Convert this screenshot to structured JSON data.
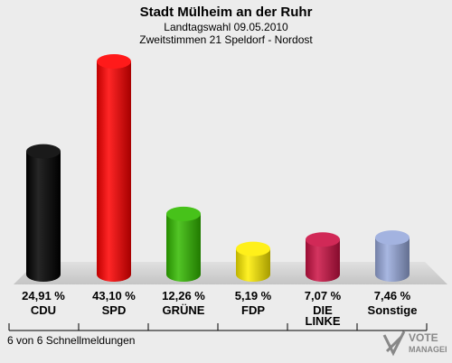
{
  "header": {
    "title": "Stadt Mülheim an der Ruhr",
    "subtitle1": "Landtagswahl 09.05.2010",
    "subtitle2": "Zweitstimmen 21 Speldorf - Nordost"
  },
  "footer": {
    "text": "6 von 6 Schnellmeldungen"
  },
  "logo": {
    "text": "VOTE",
    "subtext": "MANAGER"
  },
  "chart_data": {
    "type": "bar",
    "categories": [
      "CDU",
      "SPD",
      "GRÜNE",
      "FDP",
      "DIE LINKE",
      "Sonstige"
    ],
    "values": [
      24.91,
      43.1,
      12.26,
      5.19,
      7.07,
      7.46
    ],
    "value_labels": [
      "24,91 %",
      "43,10 %",
      "12,26 %",
      "5,19 %",
      "7,07 %",
      "7,46 %"
    ],
    "colors": [
      "#000000",
      "#ff0000",
      "#33bb00",
      "#ffee00",
      "#cc1144",
      "#99aadd"
    ]
  }
}
